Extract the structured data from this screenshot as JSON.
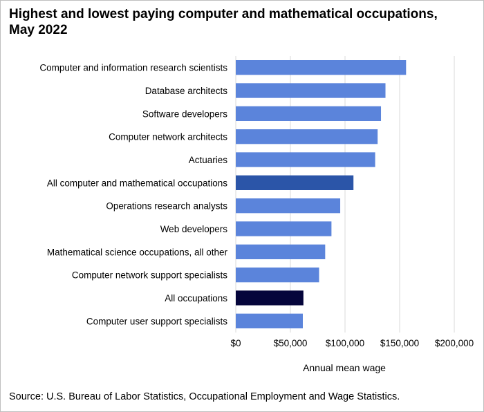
{
  "title_lines": [
    "Highest and lowest paying computer and mathematical occupations,",
    "May 2022"
  ],
  "source": "Source: U.S. Bureau of Labor Statistics, Occupational Employment  and Wage Statistics.",
  "colors": {
    "bar_default": "#5b84db",
    "bar_highlight_group": "#2b55a8",
    "bar_highlight_all": "#05053b",
    "gridline": "#d9d9d9"
  },
  "chart_data": {
    "type": "bar",
    "orientation": "horizontal",
    "categories": [
      "Computer and information research scientists",
      "Database architects",
      "Software developers",
      "Computer network architects",
      "Actuaries",
      "All computer and mathematical occupations",
      "Operations research analysts",
      "Web developers",
      "Mathematical science occupations, all other",
      "Computer network support specialists",
      "All occupations",
      "Computer user support specialists"
    ],
    "values": [
      155880,
      137030,
      132930,
      129840,
      127580,
      107720,
      95600,
      87580,
      81850,
      76250,
      61900,
      61370
    ],
    "bar_color_keys": [
      "bar_default",
      "bar_default",
      "bar_default",
      "bar_default",
      "bar_default",
      "bar_highlight_group",
      "bar_default",
      "bar_default",
      "bar_default",
      "bar_default",
      "bar_highlight_all",
      "bar_default"
    ],
    "xlabel": "Annual mean wage",
    "ylabel": "",
    "xlim": [
      0,
      200000
    ],
    "xticks": [
      0,
      50000,
      100000,
      150000,
      200000
    ],
    "xtick_labels": [
      "$0",
      "$50,000",
      "$100,000",
      "$150,000",
      "$200,000"
    ],
    "grid": "vertical",
    "legend": "none"
  }
}
